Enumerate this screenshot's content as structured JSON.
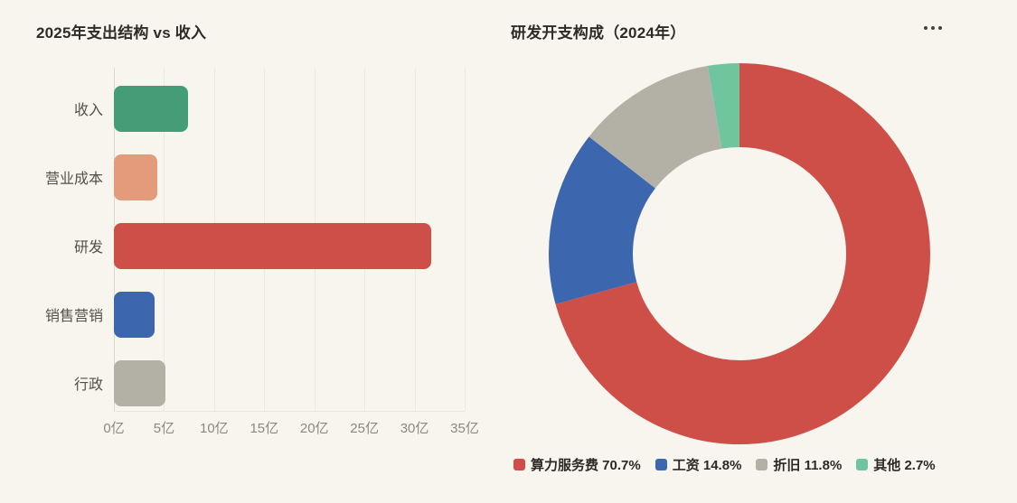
{
  "theme": {
    "background": "#f8f5ee",
    "title_color": "#2d2b27",
    "axis_label_color": "#8b887f",
    "category_label_color": "#53504a",
    "legend_text_color": "#2c2a26"
  },
  "chart_data": [
    {
      "type": "bar",
      "orientation": "horizontal",
      "title": "2025年支出结构 vs 收入",
      "categories": [
        "收入",
        "营业成本",
        "研发",
        "销售营销",
        "行政"
      ],
      "keys": [
        "revenue",
        "operating-cost",
        "rd",
        "sales-marketing",
        "admin"
      ],
      "values": [
        7.4,
        4.3,
        31.7,
        4.1,
        5.1
      ],
      "unit": "亿",
      "colors": [
        "#459d77",
        "#e49b7c",
        "#cd4f48",
        "#3c66ae",
        "#b3b0a6"
      ],
      "xlim": [
        0,
        35
      ],
      "x_ticks": [
        "0亿",
        "5亿",
        "10亿",
        "15亿",
        "20亿",
        "25亿",
        "30亿",
        "35亿"
      ],
      "grid": true,
      "legend_position": "none"
    },
    {
      "type": "pie",
      "donut": true,
      "title": "研发开支构成（2024年）",
      "labels": [
        "算力服务费",
        "工资",
        "折旧",
        "其他"
      ],
      "keys": [
        "compute-service-fee",
        "salary",
        "depreciation",
        "other"
      ],
      "values": [
        70.7,
        14.8,
        11.8,
        2.7
      ],
      "unit": "%",
      "colors": [
        "#cd4f48",
        "#3c66ae",
        "#b3b0a6",
        "#6fc69e"
      ],
      "legend": [
        "算力服务费 70.7%",
        "工资 14.8%",
        "折旧 11.8%",
        "其他 2.7%"
      ],
      "legend_position": "bottom",
      "start_angle": 90,
      "direction": "clockwise"
    }
  ]
}
